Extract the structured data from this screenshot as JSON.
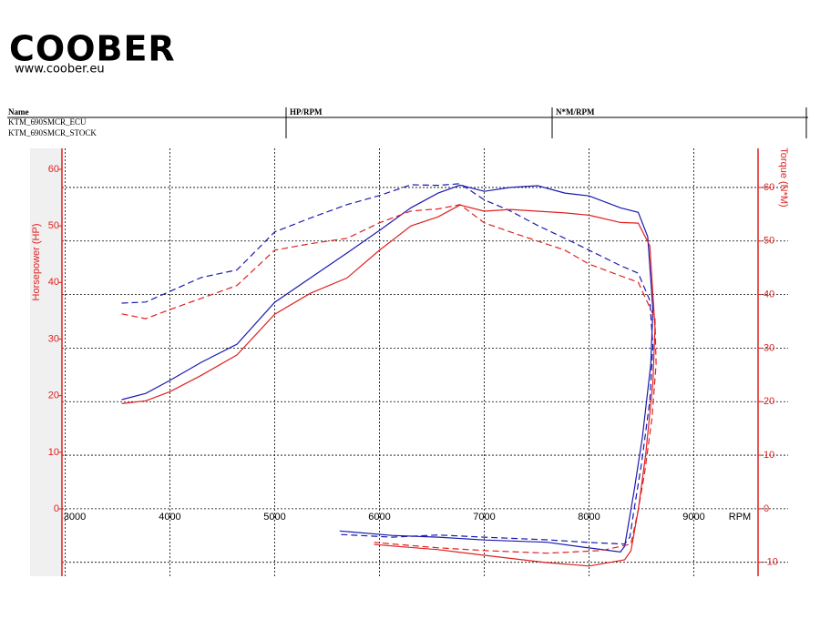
{
  "header": {
    "logo": "COOBER",
    "url": "www.coober.eu"
  },
  "table": {
    "columns": [
      "Name",
      "HP/RPM",
      "N*M/RPM"
    ],
    "rows": [
      "KTM_690SMCR_ECU",
      "KTM_690SMCR_STOCK"
    ]
  },
  "chart_data": {
    "type": "line",
    "x_label": "RPM",
    "y_label": "Horsepower (HP)",
    "y2_label": "Torque (N*M)",
    "xlim": [
      2970,
      9900
    ],
    "xticks": [
      3000,
      4000,
      5000,
      6000,
      7000,
      8000,
      9000
    ],
    "ylim": [
      -11.9,
      63.7
    ],
    "yticks": [
      0,
      10,
      20,
      30,
      40,
      50,
      60
    ],
    "y2lim": [
      -12.6,
      67.3
    ],
    "y2ticks": [
      -10,
      0,
      10,
      20,
      30,
      40,
      50,
      60
    ],
    "grid": true,
    "axis_color": "#e02020",
    "series": [
      {
        "color": "#1a1ab0",
        "axis": "y",
        "dash": false,
        "x": [
          3540,
          3770,
          4000,
          4300,
          4640,
          5000,
          5340,
          5690,
          6000,
          6300,
          6560,
          6770,
          7000,
          7250,
          7510,
          7770,
          8000,
          8300,
          8470,
          8560,
          8610,
          8590,
          8510,
          8430,
          8340,
          8300,
          8000,
          7600,
          7000,
          6560,
          6120,
          5620
        ],
        "values": [
          19.3,
          20.4,
          22.7,
          25.9,
          29.1,
          36.5,
          40.8,
          45.2,
          49.2,
          53.2,
          55.8,
          57.2,
          56.1,
          56.8,
          57.1,
          55.8,
          55.3,
          53.2,
          52.4,
          48.1,
          35.2,
          25.6,
          12.7,
          3.1,
          -6.6,
          -7.6,
          -6.9,
          -5.9,
          -5.5,
          -5.0,
          -4.7,
          -3.9
        ]
      },
      {
        "color": "#1a1ab0",
        "axis": "y2",
        "dash": true,
        "x": [
          3540,
          3770,
          4000,
          4300,
          4640,
          5000,
          5340,
          5690,
          6000,
          6300,
          6560,
          6770,
          7000,
          7250,
          7510,
          7770,
          8000,
          8300,
          8470,
          8580,
          8610,
          8580,
          8500,
          8430,
          8390,
          8340,
          8000,
          7600,
          7000,
          6560,
          6120,
          5620
        ],
        "values": [
          38.4,
          38.6,
          40.6,
          43.2,
          44.6,
          51.7,
          54.3,
          56.8,
          58.5,
          60.5,
          60.4,
          60.7,
          57.7,
          55.6,
          52.9,
          50.5,
          48.3,
          45.4,
          44.0,
          38.9,
          30.4,
          20.2,
          8.3,
          -0.2,
          -5.3,
          -6.6,
          -6.3,
          -5.8,
          -5.3,
          -4.9,
          -5.3,
          -4.8
        ]
      },
      {
        "color": "#e02020",
        "axis": "y",
        "dash": false,
        "x": [
          3540,
          3770,
          4000,
          4300,
          4640,
          5000,
          5340,
          5690,
          6000,
          6300,
          6560,
          6770,
          7000,
          7250,
          7510,
          7770,
          8000,
          8300,
          8470,
          8580,
          8630,
          8610,
          8540,
          8470,
          8400,
          8340,
          8000,
          7600,
          7000,
          6560,
          5950
        ],
        "values": [
          18.6,
          19.1,
          20.7,
          23.6,
          27.2,
          34.4,
          38.1,
          40.8,
          45.7,
          50.0,
          51.6,
          53.7,
          52.6,
          52.9,
          52.6,
          52.3,
          51.9,
          50.6,
          50.5,
          46.5,
          32.0,
          22.3,
          9.5,
          -0.2,
          -7.4,
          -9.0,
          -10.1,
          -9.5,
          -8.2,
          -7.2,
          -6.3
        ]
      },
      {
        "color": "#e02020",
        "axis": "y2",
        "dash": true,
        "x": [
          3540,
          3770,
          4000,
          4300,
          4640,
          5000,
          5340,
          5690,
          6000,
          6300,
          6560,
          6770,
          7000,
          7250,
          7510,
          7770,
          8000,
          8300,
          8470,
          8630,
          8640,
          8600,
          8530,
          8470,
          8400,
          8120,
          7600,
          7000,
          6560,
          5950
        ],
        "values": [
          36.4,
          35.5,
          37.2,
          39.3,
          41.7,
          48.3,
          49.5,
          50.5,
          53.4,
          55.6,
          56.0,
          56.8,
          53.4,
          51.7,
          50.0,
          48.3,
          45.7,
          43.5,
          42.3,
          35.5,
          27.0,
          16.8,
          6.6,
          -0.2,
          -6.6,
          -7.8,
          -8.3,
          -7.8,
          -7.3,
          -6.3
        ]
      }
    ]
  }
}
